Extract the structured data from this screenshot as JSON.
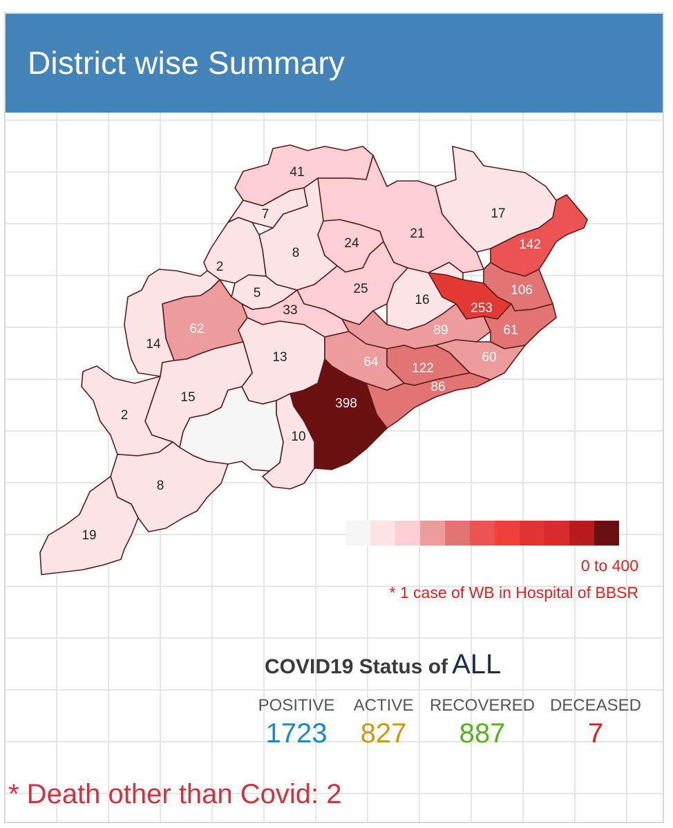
{
  "header": {
    "title": "District wise Summary"
  },
  "map": {
    "district_values": [
      {
        "value": "41"
      },
      {
        "value": "7"
      },
      {
        "value": "8"
      },
      {
        "value": "24"
      },
      {
        "value": "21"
      },
      {
        "value": "17"
      },
      {
        "value": "142"
      },
      {
        "value": "2"
      },
      {
        "value": "5"
      },
      {
        "value": "25"
      },
      {
        "value": "16"
      },
      {
        "value": "253"
      },
      {
        "value": "106"
      },
      {
        "value": "62"
      },
      {
        "value": "33"
      },
      {
        "value": "14"
      },
      {
        "value": "13"
      },
      {
        "value": "89"
      },
      {
        "value": "61"
      },
      {
        "value": "64"
      },
      {
        "value": "122"
      },
      {
        "value": "60"
      },
      {
        "value": "86"
      },
      {
        "value": "15"
      },
      {
        "value": "398"
      },
      {
        "value": "2"
      },
      {
        "value": "10"
      },
      {
        "value": "8"
      },
      {
        "value": "19"
      },
      {
        "value": ""
      }
    ],
    "colors": {
      "nodata": "#f6f6f6",
      "c1": "#fde4e7",
      "c2": "#fbcfd4",
      "c3": "#ed9c9e",
      "c4": "#e27474",
      "c5": "#ec5454",
      "c6": "#e43a34",
      "c7": "#d22a2c",
      "c8": "#6b1010",
      "border": "#5a1a1a"
    }
  },
  "legend": {
    "colors": [
      "#f6f6f6",
      "#fde4e7",
      "#fbcfd4",
      "#ed9c9e",
      "#e27474",
      "#ec5454",
      "#f04039",
      "#e03432",
      "#d92b2c",
      "#b81c1f",
      "#6b1010"
    ],
    "range_text": "0 to 400",
    "note": "* 1 case of WB in Hospital of BBSR"
  },
  "status": {
    "title_prefix": "COVID19 Status of",
    "title_scope": "ALL",
    "positive_label": "POSITIVE",
    "positive_value": "1723",
    "positive_color": "#1a8ac7",
    "active_label": "ACTIVE",
    "active_value": "827",
    "active_color": "#c99a12",
    "recovered_label": "RECOVERED",
    "recovered_value": "887",
    "recovered_color": "#56b319",
    "deceased_label": "DECEASED",
    "deceased_value": "7",
    "deceased_color": "#e0201e"
  },
  "footnote": "* Death other than Covid: 2"
}
